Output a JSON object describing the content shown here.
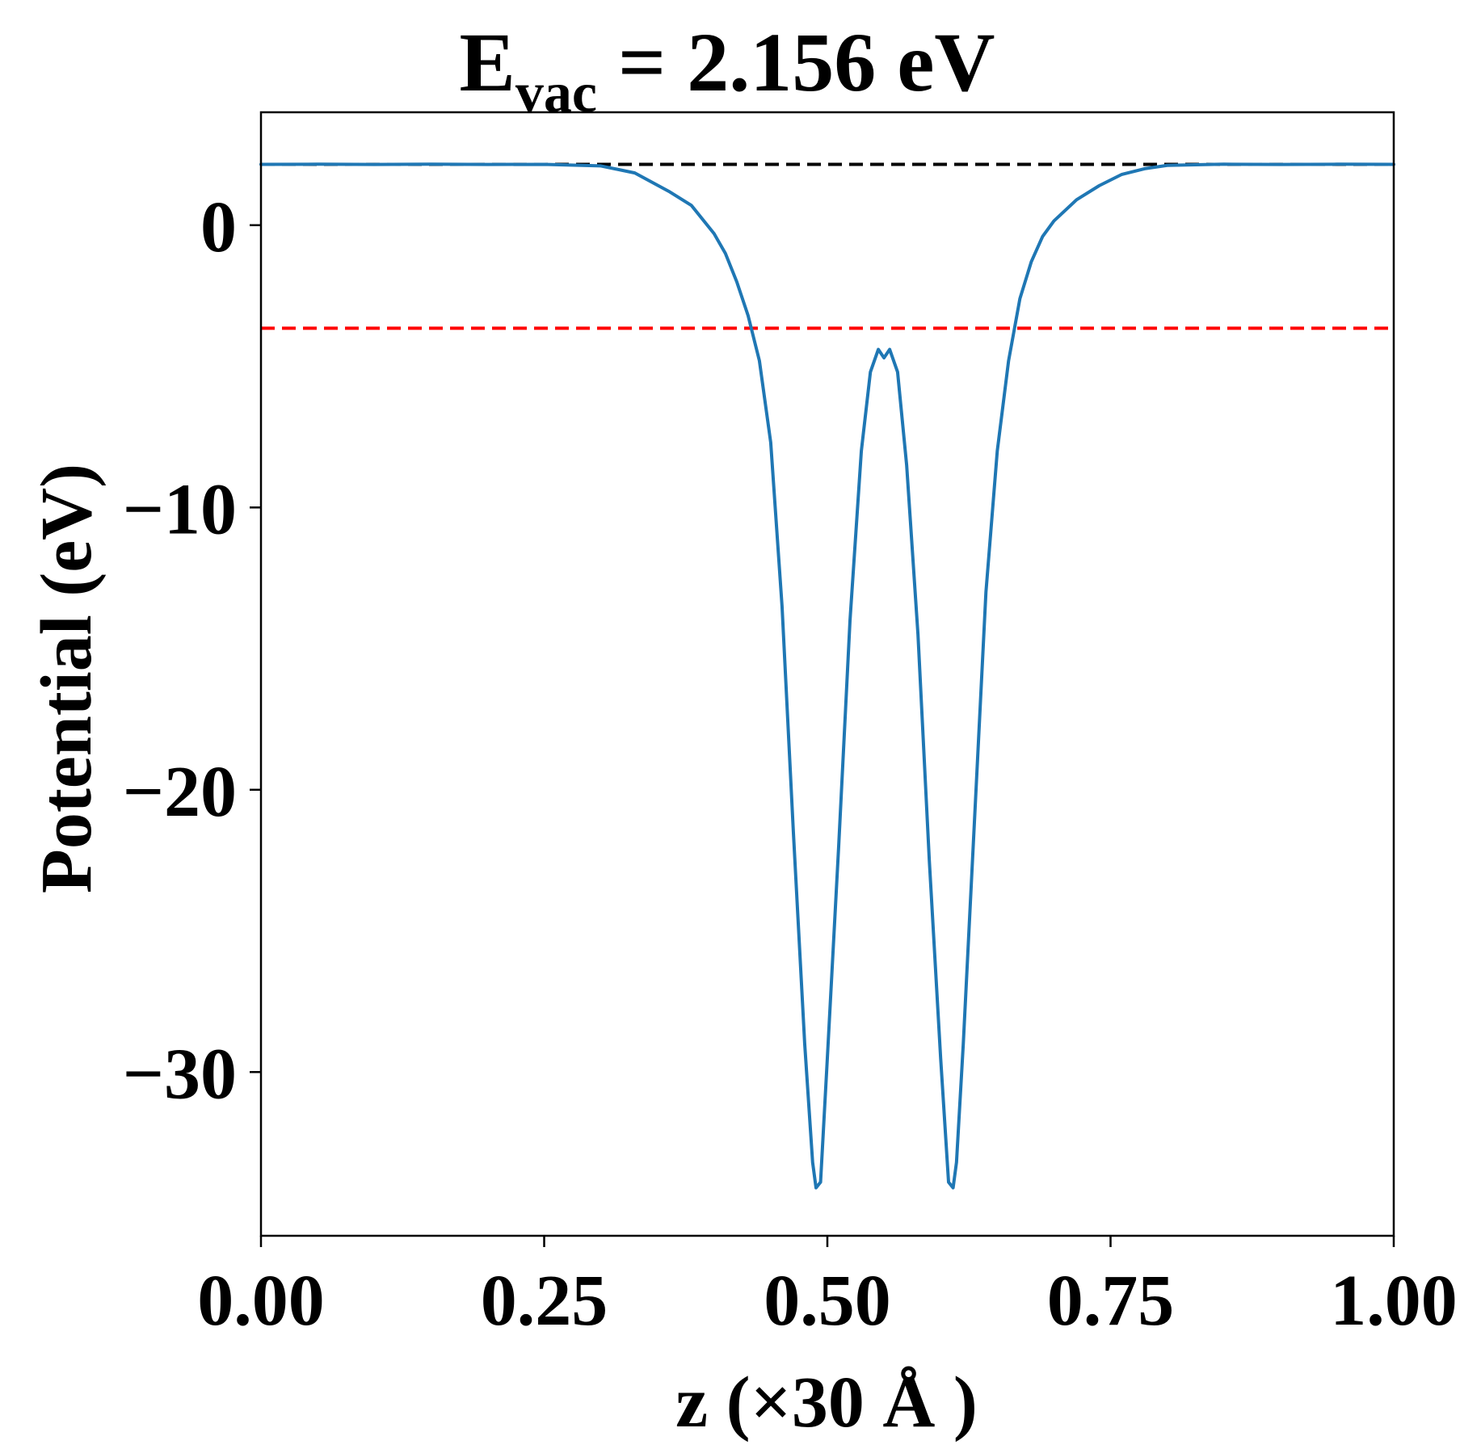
{
  "chart_data": {
    "type": "line",
    "title": {
      "main": "E",
      "subscript": "vac",
      "rest": " = 2.156 eV"
    },
    "xlabel": "z (×30 Å )",
    "ylabel": "Potential (eV)",
    "xlim": [
      0,
      1
    ],
    "ylim": [
      -35.8,
      4.0
    ],
    "x_ticks": [
      0,
      0.25,
      0.5,
      0.75,
      1
    ],
    "x_tick_labels": [
      "0.00",
      "0.25",
      "0.50",
      "0.75",
      "1.00"
    ],
    "y_ticks": [
      0,
      -10,
      -20,
      -30
    ],
    "y_tick_labels": [
      "0",
      "−10",
      "−20",
      "−30"
    ],
    "grid": false,
    "reference_lines": [
      {
        "y": 2.156,
        "color": "#000000",
        "style": "dashed"
      },
      {
        "y": -3.65,
        "color": "#ff0000",
        "style": "dashed"
      }
    ],
    "series": [
      {
        "color": "#1f77b4",
        "points": [
          [
            0.0,
            2.156
          ],
          [
            0.05,
            2.16
          ],
          [
            0.1,
            2.15
          ],
          [
            0.15,
            2.16
          ],
          [
            0.2,
            2.15
          ],
          [
            0.25,
            2.156
          ],
          [
            0.3,
            2.1
          ],
          [
            0.33,
            1.85
          ],
          [
            0.36,
            1.2
          ],
          [
            0.38,
            0.7
          ],
          [
            0.4,
            -0.3
          ],
          [
            0.41,
            -1.0
          ],
          [
            0.42,
            -2.0
          ],
          [
            0.43,
            -3.2
          ],
          [
            0.44,
            -4.8
          ],
          [
            0.45,
            -7.7
          ],
          [
            0.46,
            -13.5
          ],
          [
            0.47,
            -21.5
          ],
          [
            0.48,
            -29.0
          ],
          [
            0.487,
            -33.2
          ],
          [
            0.49,
            -34.1
          ],
          [
            0.494,
            -33.9
          ],
          [
            0.5,
            -29.5
          ],
          [
            0.51,
            -22.0
          ],
          [
            0.52,
            -14.0
          ],
          [
            0.53,
            -8.0
          ],
          [
            0.538,
            -5.2
          ],
          [
            0.545,
            -4.4
          ],
          [
            0.55,
            -4.7
          ],
          [
            0.555,
            -4.4
          ],
          [
            0.562,
            -5.2
          ],
          [
            0.57,
            -8.5
          ],
          [
            0.58,
            -14.5
          ],
          [
            0.59,
            -22.5
          ],
          [
            0.6,
            -29.5
          ],
          [
            0.607,
            -33.9
          ],
          [
            0.611,
            -34.1
          ],
          [
            0.614,
            -33.2
          ],
          [
            0.62,
            -29.0
          ],
          [
            0.63,
            -21.0
          ],
          [
            0.64,
            -13.0
          ],
          [
            0.65,
            -8.0
          ],
          [
            0.66,
            -4.8
          ],
          [
            0.67,
            -2.6
          ],
          [
            0.68,
            -1.3
          ],
          [
            0.69,
            -0.4
          ],
          [
            0.7,
            0.15
          ],
          [
            0.72,
            0.9
          ],
          [
            0.74,
            1.4
          ],
          [
            0.76,
            1.8
          ],
          [
            0.78,
            2.0
          ],
          [
            0.8,
            2.12
          ],
          [
            0.85,
            2.16
          ],
          [
            0.9,
            2.15
          ],
          [
            0.95,
            2.16
          ],
          [
            1.0,
            2.156
          ]
        ]
      }
    ]
  }
}
